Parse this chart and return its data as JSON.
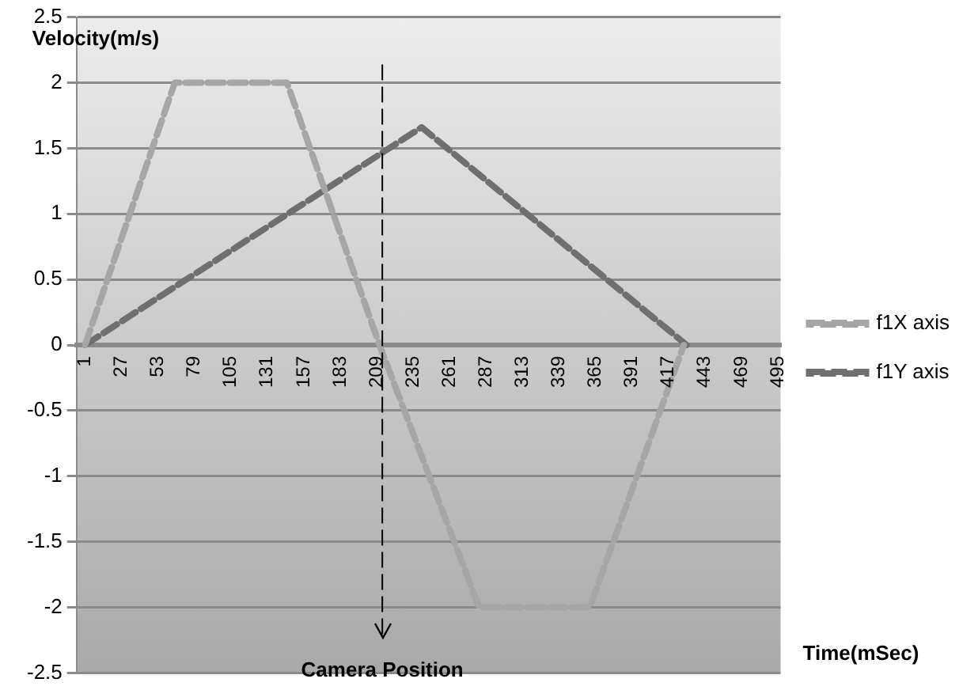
{
  "chart_data": {
    "type": "line",
    "xlabel": "Time(mSec)",
    "ylabel": "Velocity(m/s)",
    "xlim": [
      -5,
      497
    ],
    "xticks": [
      1,
      27,
      53,
      79,
      105,
      131,
      157,
      183,
      209,
      235,
      261,
      287,
      313,
      339,
      365,
      391,
      417,
      443,
      469,
      495
    ],
    "ylim": [
      -2.5,
      2.5
    ],
    "yticks": [
      -2.5,
      -2,
      -1.5,
      -1,
      -0.5,
      0,
      0.5,
      1,
      1.5,
      2,
      2.5
    ],
    "grid": "y",
    "legend": "right",
    "line_style": "dashed",
    "marker": "none",
    "ref_lines": [
      {
        "axis": "x",
        "value": 213,
        "label": "Camera Position",
        "color": "#000000",
        "line_style": "dashed"
      }
    ],
    "series": [
      {
        "name": "f1X axis",
        "color": "#a6a6a6",
        "x": [
          1,
          65,
          145,
          211,
          282,
          361,
          428
        ],
        "values": [
          0,
          2,
          2,
          0,
          -2,
          -2,
          0
        ]
      },
      {
        "name": "f1Y axis",
        "color": "#6f6f6f",
        "x": [
          1,
          241,
          430
        ],
        "values": [
          0,
          1.66,
          0
        ]
      }
    ]
  }
}
